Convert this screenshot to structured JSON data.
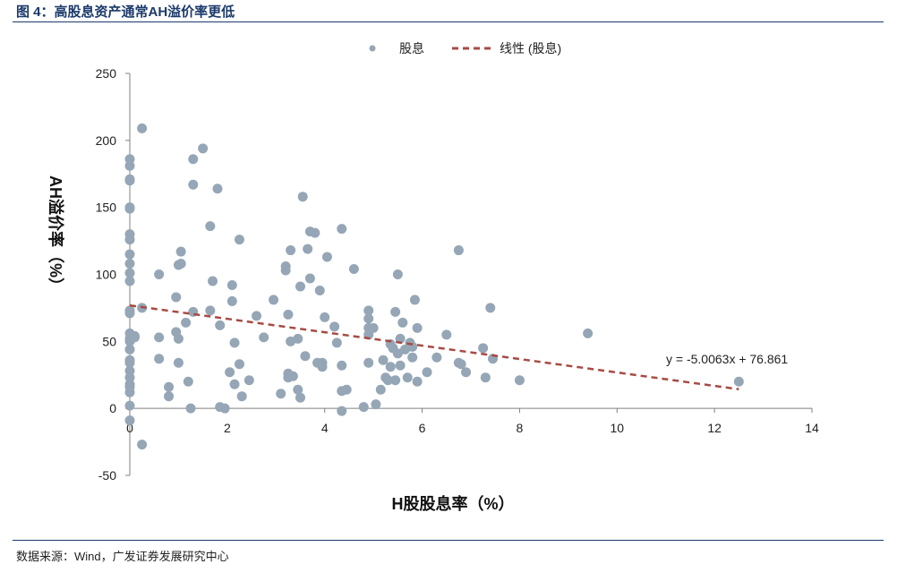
{
  "header": {
    "title": "图 4：高股息资产通常AH溢价率更低"
  },
  "footer": {
    "source": "数据来源：Wind，广发证券发展研究中心"
  },
  "colors": {
    "points": "#95a6b6",
    "trend": "#a84a44",
    "title": "#1b3a6b"
  },
  "chart_data": {
    "type": "scatter",
    "xlabel": "H股股息率（%）",
    "ylabel": "AH溢价率（%）",
    "xlim": [
      0,
      14
    ],
    "ylim": [
      -50,
      250
    ],
    "xticks": [
      "0",
      "2",
      "4",
      "6",
      "8",
      "10",
      "12",
      "14"
    ],
    "yticks": [
      "-50",
      "0",
      "50",
      "100",
      "150",
      "200",
      "250"
    ],
    "grid": false,
    "legend_position": "top-center",
    "legend": {
      "points": "股息",
      "trend": "线性 (股息)"
    },
    "trendline": {
      "slope": -5.0063,
      "intercept": 76.861,
      "x_range": [
        0,
        12.5
      ],
      "equation": "y = -5.0063x + 76.861",
      "style": "dashed"
    },
    "series": [
      {
        "name": "股息",
        "points": [
          [
            0,
            186
          ],
          [
            0,
            181
          ],
          [
            0,
            171
          ],
          [
            0,
            170
          ],
          [
            0,
            150
          ],
          [
            0,
            149
          ],
          [
            0,
            130
          ],
          [
            0,
            126
          ],
          [
            0,
            115
          ],
          [
            0,
            108
          ],
          [
            0,
            101
          ],
          [
            0,
            95
          ],
          [
            0,
            73
          ],
          [
            0,
            71
          ],
          [
            0,
            56
          ],
          [
            0,
            52
          ],
          [
            0,
            50
          ],
          [
            0,
            44
          ],
          [
            0,
            36
          ],
          [
            0,
            34
          ],
          [
            0,
            28
          ],
          [
            0,
            23
          ],
          [
            0,
            18
          ],
          [
            0,
            16
          ],
          [
            0,
            12
          ],
          [
            0,
            2
          ],
          [
            0,
            -9
          ],
          [
            0.1,
            53
          ],
          [
            0.1,
            54
          ],
          [
            0.25,
            209
          ],
          [
            0.25,
            75
          ],
          [
            0.25,
            -27
          ],
          [
            0.6,
            100
          ],
          [
            0.6,
            53
          ],
          [
            0.6,
            37
          ],
          [
            0.8,
            16
          ],
          [
            0.8,
            9
          ],
          [
            0.95,
            83
          ],
          [
            0.95,
            57
          ],
          [
            1.0,
            52
          ],
          [
            1.0,
            34
          ],
          [
            1.0,
            107
          ],
          [
            1.05,
            108
          ],
          [
            1.05,
            117
          ],
          [
            1.15,
            64
          ],
          [
            1.2,
            20
          ],
          [
            1.25,
            0
          ],
          [
            1.3,
            186
          ],
          [
            1.3,
            167
          ],
          [
            1.3,
            72
          ],
          [
            1.5,
            194
          ],
          [
            1.65,
            136
          ],
          [
            1.65,
            73
          ],
          [
            1.7,
            95
          ],
          [
            1.8,
            164
          ],
          [
            1.85,
            62
          ],
          [
            1.85,
            1
          ],
          [
            1.95,
            0
          ],
          [
            2.05,
            27
          ],
          [
            2.1,
            92
          ],
          [
            2.1,
            80
          ],
          [
            2.15,
            49
          ],
          [
            2.15,
            18
          ],
          [
            2.25,
            126
          ],
          [
            2.25,
            33
          ],
          [
            2.3,
            9
          ],
          [
            2.45,
            21
          ],
          [
            2.6,
            69
          ],
          [
            2.75,
            53
          ],
          [
            2.95,
            81
          ],
          [
            3.1,
            11
          ],
          [
            3.2,
            106
          ],
          [
            3.2,
            103
          ],
          [
            3.25,
            70
          ],
          [
            3.25,
            26
          ],
          [
            3.25,
            23
          ],
          [
            3.3,
            118
          ],
          [
            3.3,
            50
          ],
          [
            3.35,
            24
          ],
          [
            3.45,
            14
          ],
          [
            3.45,
            52
          ],
          [
            3.5,
            91
          ],
          [
            3.5,
            8
          ],
          [
            3.55,
            158
          ],
          [
            3.6,
            39
          ],
          [
            3.65,
            119
          ],
          [
            3.7,
            97
          ],
          [
            3.7,
            132
          ],
          [
            3.8,
            131
          ],
          [
            3.85,
            34
          ],
          [
            3.9,
            88
          ],
          [
            3.95,
            31
          ],
          [
            3.95,
            34
          ],
          [
            4.0,
            68
          ],
          [
            4.05,
            113
          ],
          [
            4.2,
            61
          ],
          [
            4.25,
            49
          ],
          [
            4.35,
            134
          ],
          [
            4.35,
            13
          ],
          [
            4.35,
            32
          ],
          [
            4.35,
            -2
          ],
          [
            4.45,
            14
          ],
          [
            4.6,
            104
          ],
          [
            4.8,
            1
          ],
          [
            4.9,
            73
          ],
          [
            4.9,
            67
          ],
          [
            4.9,
            60
          ],
          [
            4.9,
            55
          ],
          [
            4.9,
            34
          ],
          [
            5.0,
            60
          ],
          [
            5.05,
            3
          ],
          [
            5.15,
            14
          ],
          [
            5.2,
            36
          ],
          [
            5.25,
            23
          ],
          [
            5.3,
            21
          ],
          [
            5.35,
            48
          ],
          [
            5.35,
            31
          ],
          [
            5.4,
            45
          ],
          [
            5.45,
            21
          ],
          [
            5.45,
            72
          ],
          [
            5.5,
            100
          ],
          [
            5.5,
            41
          ],
          [
            5.55,
            52
          ],
          [
            5.55,
            32
          ],
          [
            5.6,
            64
          ],
          [
            5.65,
            44
          ],
          [
            5.7,
            23
          ],
          [
            5.75,
            49
          ],
          [
            5.8,
            46
          ],
          [
            5.8,
            38
          ],
          [
            5.85,
            81
          ],
          [
            5.9,
            60
          ],
          [
            5.9,
            20
          ],
          [
            6.1,
            27
          ],
          [
            6.3,
            38
          ],
          [
            6.5,
            55
          ],
          [
            6.75,
            118
          ],
          [
            6.75,
            34
          ],
          [
            6.8,
            33
          ],
          [
            6.9,
            27
          ],
          [
            7.25,
            45
          ],
          [
            7.3,
            23
          ],
          [
            7.4,
            75
          ],
          [
            7.45,
            37
          ],
          [
            8.0,
            21
          ],
          [
            9.4,
            56
          ],
          [
            12.5,
            20
          ]
        ]
      }
    ]
  }
}
